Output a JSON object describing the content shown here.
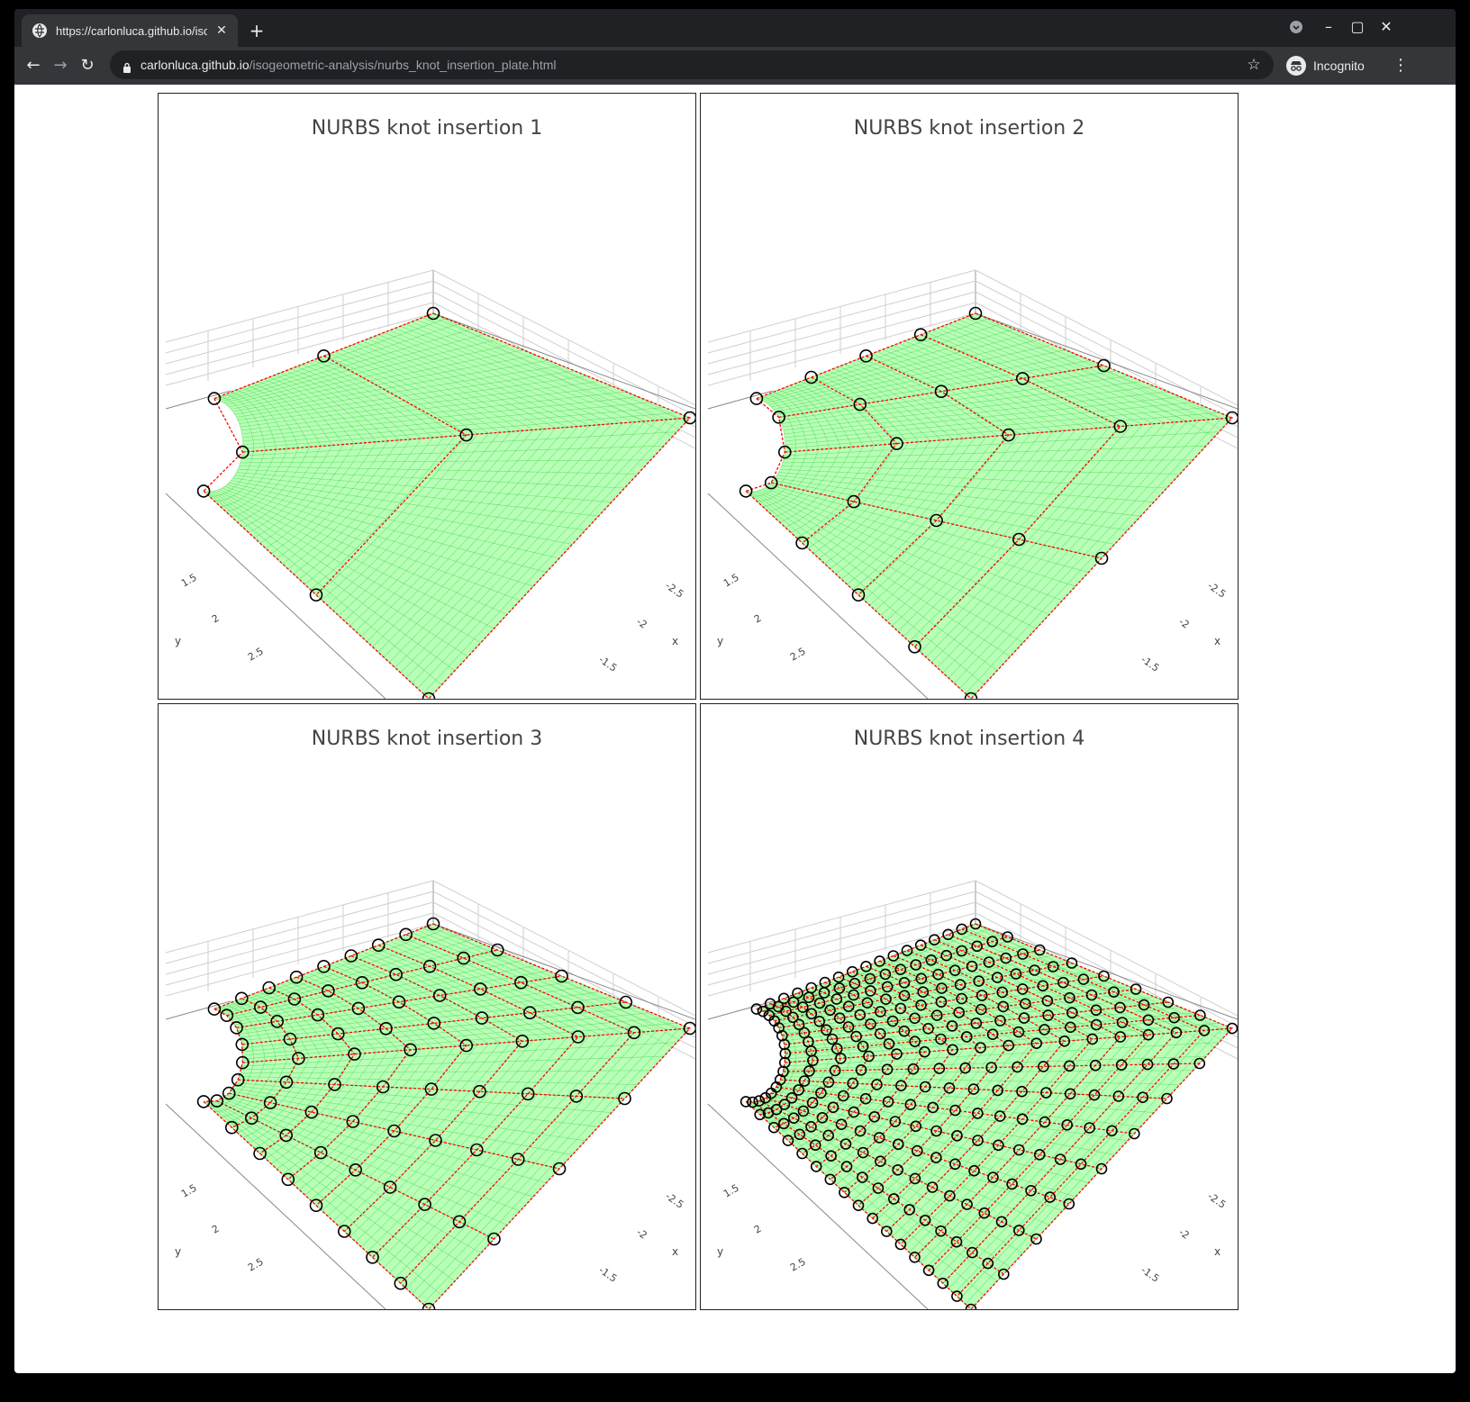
{
  "browser": {
    "tab_title": "https://carlonluca.github.io/isogeometric-analysis/nurbs_knot_insertion_plate.html",
    "url_host": "carlonluca.github.io",
    "url_path": "/isogeometric-analysis/nurbs_knot_insertion_plate.html",
    "profile_label": "Incognito",
    "icons": [
      "globe-icon",
      "close-icon",
      "plus-icon",
      "back-icon",
      "forward-icon",
      "reload-icon",
      "lock-icon",
      "star-icon",
      "incognito-icon",
      "more-icon",
      "minimize-icon",
      "maximize-icon",
      "close-window-icon",
      "tab-search-icon"
    ]
  },
  "plots": [
    {
      "title": "NURBS knot insertion 1",
      "x_axis": {
        "label": "x",
        "ticks": [
          "-2.5",
          "-2",
          "-1.5"
        ]
      },
      "y_axis": {
        "label": "y",
        "ticks": [
          "1.5",
          "2",
          "2.5"
        ]
      },
      "control_grid": [
        3,
        3
      ]
    },
    {
      "title": "NURBS knot insertion 2",
      "x_axis": {
        "label": "x",
        "ticks": [
          "-2.5",
          "-2",
          "-1.5"
        ]
      },
      "y_axis": {
        "label": "y",
        "ticks": [
          "1.5",
          "2",
          "2.5"
        ]
      },
      "control_grid": [
        5,
        5
      ]
    },
    {
      "title": "NURBS knot insertion 3",
      "x_axis": {
        "label": "x",
        "ticks": [
          "-2.5",
          "-2",
          "-1.5"
        ]
      },
      "y_axis": {
        "label": "y",
        "ticks": [
          "1.5",
          "2",
          "2.5"
        ]
      },
      "control_grid": [
        9,
        9
      ]
    },
    {
      "title": "NURBS knot insertion 4",
      "x_axis": {
        "label": "x",
        "ticks": [
          "-2.5",
          "-2",
          "-1.5"
        ]
      },
      "y_axis": {
        "label": "y",
        "ticks": [
          "1.5",
          "2",
          "2.5"
        ]
      },
      "control_grid": [
        17,
        17
      ]
    }
  ],
  "colors": {
    "surface": "#7dff7d",
    "mesh": "#33cc33",
    "control_net": "#ff0000",
    "control_point": "#000000"
  }
}
